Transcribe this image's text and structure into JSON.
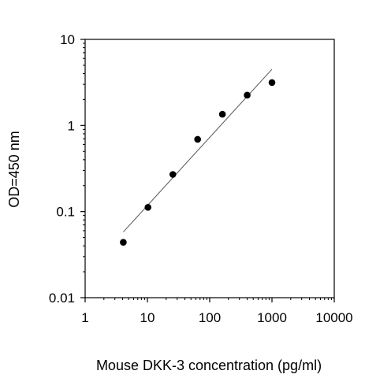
{
  "chart_data": {
    "type": "scatter",
    "title": "",
    "xlabel": "Mouse DKK-3 concentration (pg/ml)",
    "ylabel": "OD=450 nm",
    "x_scale": "log",
    "y_scale": "log",
    "xlim": [
      1,
      10000
    ],
    "ylim": [
      0.01,
      10
    ],
    "grid": false,
    "x_ticks": [
      "1",
      "10",
      "100",
      "1000",
      "10000"
    ],
    "x_tick_values": [
      1,
      10,
      100,
      1000,
      10000
    ],
    "y_ticks": [
      "0.01",
      "0.1",
      "1",
      "10"
    ],
    "y_tick_values": [
      0.01,
      0.1,
      1,
      10
    ],
    "points": [
      {
        "x": 4.1,
        "y": 0.044
      },
      {
        "x": 10.2,
        "y": 0.112
      },
      {
        "x": 25.6,
        "y": 0.27
      },
      {
        "x": 64,
        "y": 0.69
      },
      {
        "x": 160,
        "y": 1.35
      },
      {
        "x": 400,
        "y": 2.25
      },
      {
        "x": 1000,
        "y": 3.15
      }
    ],
    "fit_line": [
      {
        "x": 4.1,
        "y": 0.058
      },
      {
        "x": 1000,
        "y": 4.5
      }
    ],
    "colors": {
      "points": "#000000",
      "line": "#555555",
      "axes": "#000000"
    }
  }
}
